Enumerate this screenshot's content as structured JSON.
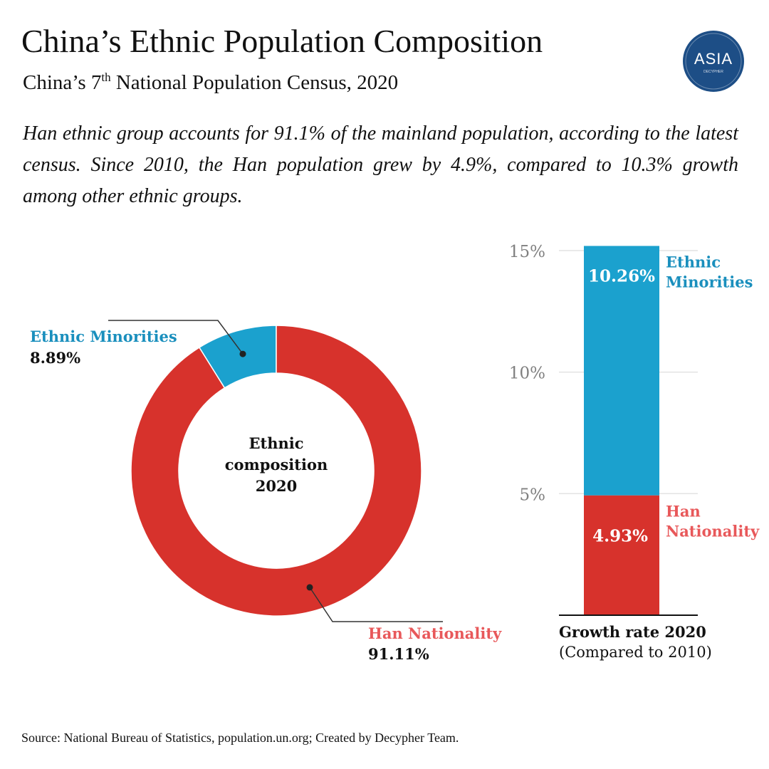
{
  "header": {
    "title": "China’s Ethnic Population Composition",
    "subtitle_pre": "China’s 7",
    "subtitle_sup": "th",
    "subtitle_post": " National Population Census, 2020",
    "description": "Han ethnic group accounts for 91.1% of the mainland population, according to the latest census. Since 2010, the Han population grew by 4.9%, compared to 10.3% growth among other ethnic groups."
  },
  "logo": {
    "text": "ASIA",
    "subtext": "DECYPHER",
    "color": "#1d4e86"
  },
  "footer": {
    "source": "Source: National Bureau of Statistics, population.un.org; Created by Decypher Team."
  },
  "colors": {
    "minorities": "#1ba1ce",
    "han": "#d7322c",
    "han_label": "#e8585a",
    "minorities_label": "#1a8fbd",
    "axis_text": "#808080"
  },
  "chart_data": [
    {
      "type": "pie",
      "title": "Ethnic composition 2020",
      "center_label": [
        "Ethnic",
        "composition",
        "2020"
      ],
      "slices": [
        {
          "name": "Ethnic  Minorities",
          "value": 8.89,
          "label": "8.89%"
        },
        {
          "name": "Han  Nationality",
          "value": 91.11,
          "label": "91.11%"
        }
      ]
    },
    {
      "type": "bar",
      "title": "Growth rate 2020",
      "subtitle": "(Compared to 2010)",
      "stacked": true,
      "ylim": [
        0,
        15.26
      ],
      "yticks": [
        5,
        10,
        15
      ],
      "ytick_labels": [
        "5%",
        "10%",
        "15%"
      ],
      "series": [
        {
          "name": "Han",
          "label_lines": [
            "Han",
            "Nationality"
          ],
          "value": 4.93,
          "value_label": "4.93%"
        },
        {
          "name": "Ethnic Minorities",
          "label_lines": [
            "Ethnic",
            "Minorities"
          ],
          "value": 10.26,
          "value_label": "10.26%"
        }
      ]
    }
  ]
}
